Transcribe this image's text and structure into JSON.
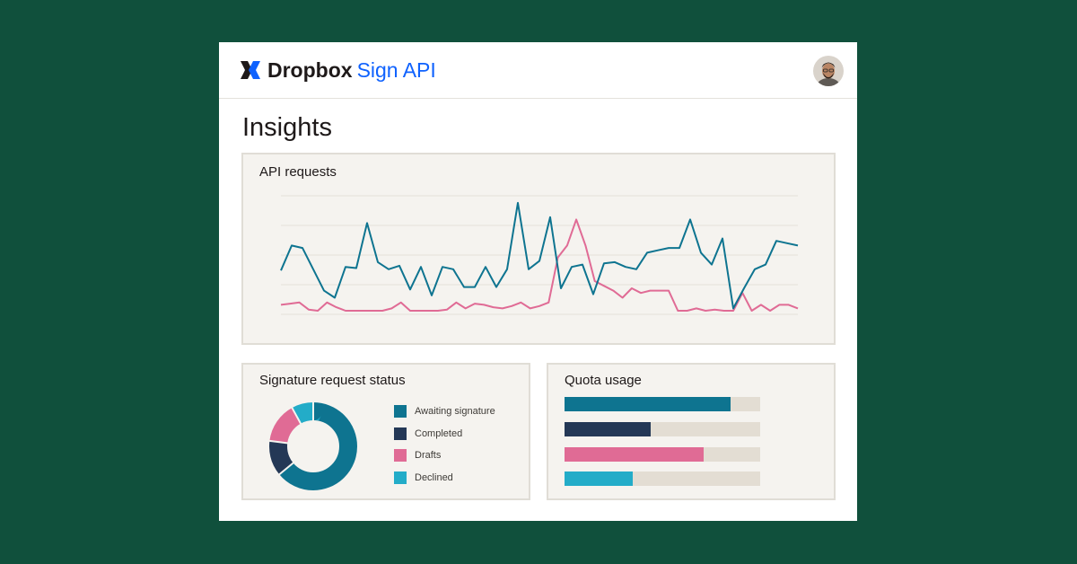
{
  "header": {
    "brand_name": "Dropbox",
    "product_name": "Sign API",
    "logo_icon": "dropbox-sign-logo-icon",
    "avatar_icon": "user-avatar"
  },
  "page": {
    "title": "Insights"
  },
  "colors": {
    "background": "#10503c",
    "teal": "#0e7490",
    "navy": "#243856",
    "pink": "#e06b95",
    "cyan": "#23acc8",
    "track": "#e3ddd3",
    "brand_blue": "#0f62fe"
  },
  "api_requests": {
    "title": "API requests",
    "chart_data": {
      "type": "line",
      "grid": true,
      "ylim": [
        0,
        100
      ],
      "series": [
        {
          "color": "#0e7490",
          "values": [
            37,
            58,
            56,
            38,
            20,
            14,
            40,
            39,
            77,
            44,
            38,
            41,
            21,
            40,
            16,
            40,
            38,
            23,
            23,
            40,
            23,
            38,
            94,
            38,
            45,
            82,
            22,
            40,
            42,
            17,
            43,
            44,
            40,
            38,
            52,
            54,
            56,
            56,
            80,
            52,
            42,
            64,
            5,
            22,
            38,
            42,
            62,
            60,
            58
          ]
        },
        {
          "color": "#e06b95",
          "values": [
            8,
            9,
            10,
            4,
            3,
            10,
            6,
            3,
            3,
            3,
            3,
            3,
            5,
            10,
            3,
            3,
            3,
            3,
            4,
            10,
            5,
            9,
            8,
            6,
            5,
            7,
            10,
            5,
            7,
            10,
            48,
            58,
            80,
            58,
            28,
            24,
            20,
            14,
            22,
            18,
            20,
            20,
            20,
            3,
            3,
            5,
            3,
            4,
            3,
            3,
            18,
            3,
            8,
            3,
            8,
            8,
            5
          ]
        }
      ]
    }
  },
  "signature_status": {
    "title": "Signature request status",
    "chart_data": {
      "type": "pie",
      "categories": [
        "Awaiting signature",
        "Completed",
        "Drafts",
        "Declined"
      ],
      "values": [
        64,
        13,
        15,
        8
      ],
      "colors": [
        "#0e7490",
        "#243856",
        "#e06b95",
        "#23acc8"
      ]
    },
    "legend": [
      {
        "label": "Awaiting signature",
        "color": "#0e7490"
      },
      {
        "label": "Completed",
        "color": "#243856"
      },
      {
        "label": "Drafts",
        "color": "#e06b95"
      },
      {
        "label": "Declined",
        "color": "#23acc8"
      }
    ]
  },
  "quota_usage": {
    "title": "Quota usage",
    "chart_data": {
      "type": "bar",
      "orientation": "horizontal",
      "values": [
        0.85,
        0.44,
        0.71,
        0.35
      ],
      "colors": [
        "#0e7490",
        "#243856",
        "#e06b95",
        "#23acc8"
      ]
    }
  }
}
